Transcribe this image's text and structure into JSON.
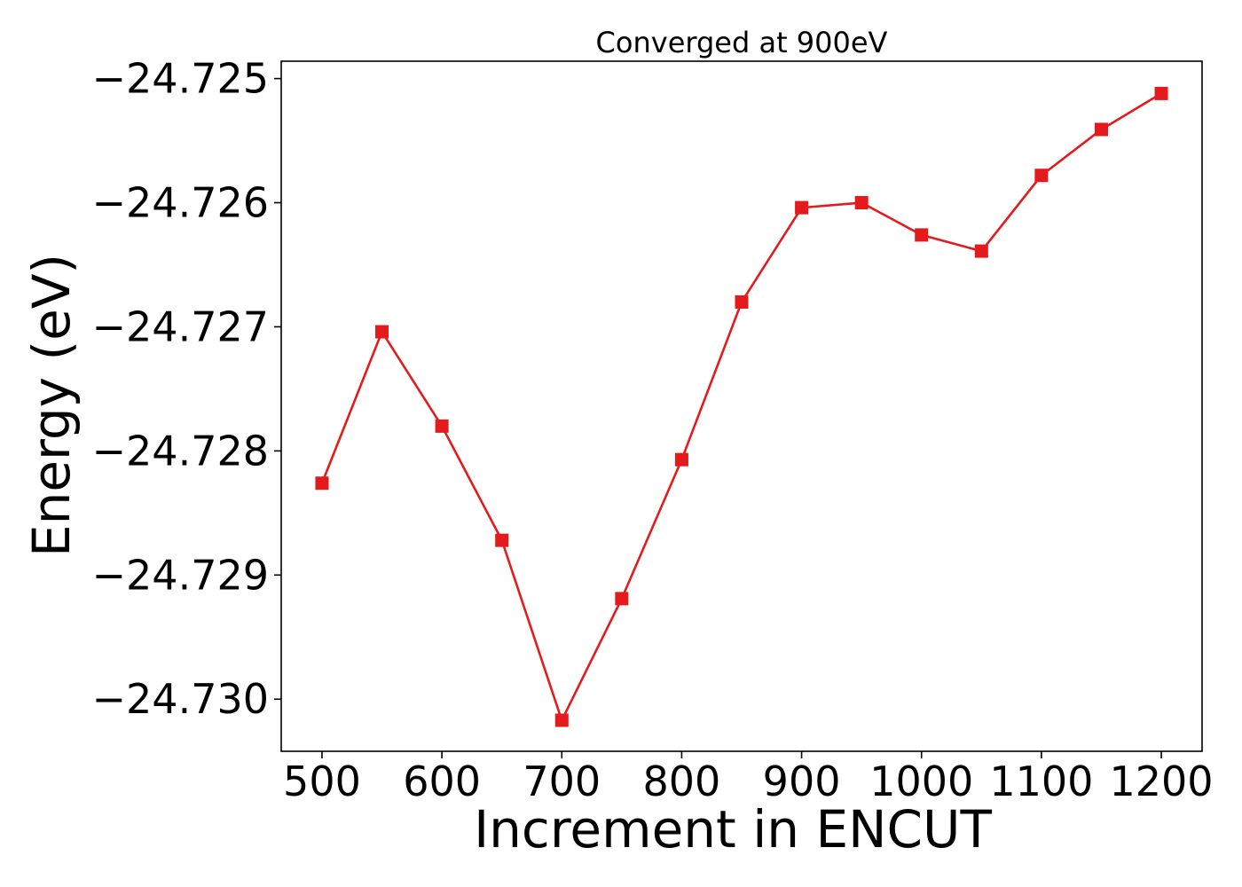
{
  "chart_data": {
    "type": "line",
    "title": "Converged at 900eV",
    "xlabel": "Increment in ENCUT",
    "ylabel": "Energy (eV)",
    "xlim": [
      466,
      1234
    ],
    "ylim": [
      -24.73042,
      -24.72486
    ],
    "xticks": [
      500,
      600,
      700,
      800,
      900,
      1000,
      1100,
      1200
    ],
    "xtick_labels": [
      "500",
      "600",
      "700",
      "800",
      "900",
      "1000",
      "1100",
      "1200"
    ],
    "yticks": [
      -24.725,
      -24.726,
      -24.727,
      -24.728,
      -24.729,
      -24.73
    ],
    "ytick_labels": [
      "−24.725",
      "−24.726",
      "−24.727",
      "−24.728",
      "−24.729",
      "−24.730"
    ],
    "grid": false,
    "series": [
      {
        "color": "#e41a1c",
        "marker": "square",
        "x": [
          500,
          550,
          600,
          650,
          700,
          750,
          800,
          850,
          900,
          950,
          1000,
          1050,
          1100,
          1150,
          1200
        ],
        "y": [
          -24.72826,
          -24.72704,
          -24.7278,
          -24.72872,
          -24.73017,
          -24.72919,
          -24.72807,
          -24.7268,
          -24.72604,
          -24.726,
          -24.72626,
          -24.72639,
          -24.72578,
          -24.72541,
          -24.72512
        ]
      }
    ]
  }
}
